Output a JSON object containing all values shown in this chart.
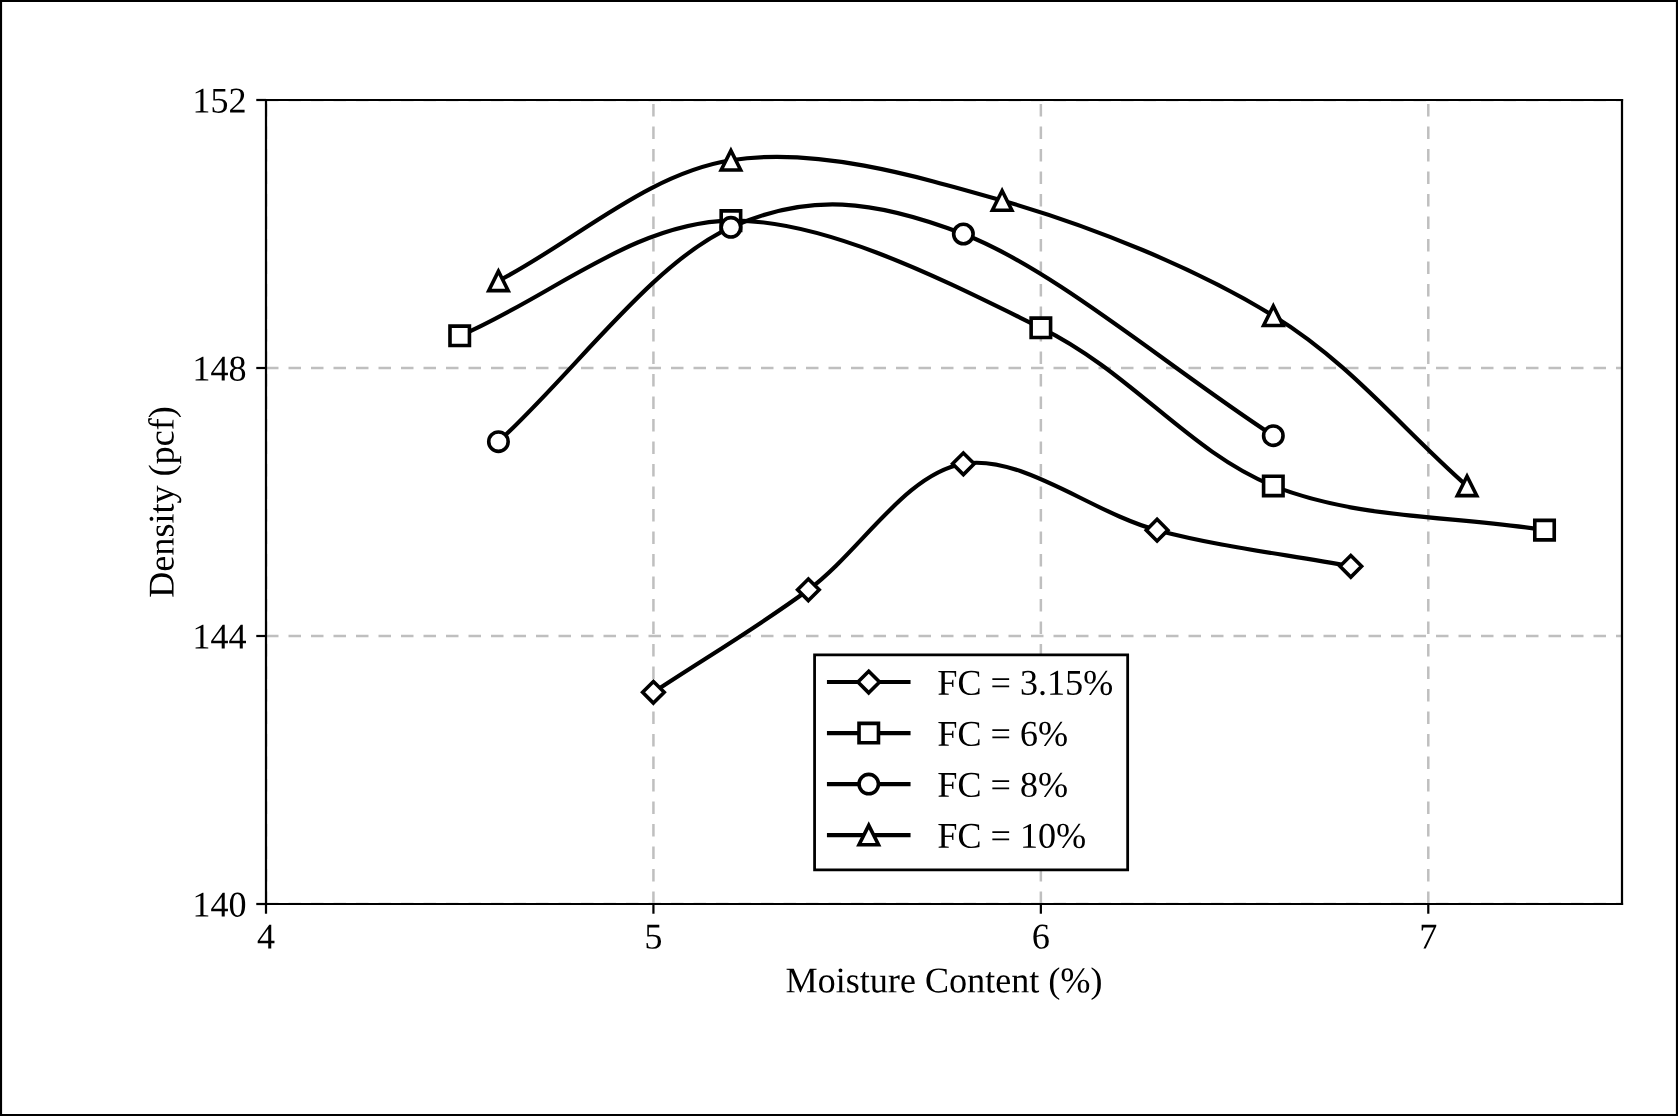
{
  "chart_data": {
    "type": "line",
    "xlabel": "Moisture Content (%)",
    "ylabel": "Density (pcf)",
    "xlim": [
      4,
      7.5
    ],
    "xticks": [
      4,
      5,
      6,
      7
    ],
    "ylim": [
      140,
      152
    ],
    "yticks": [
      140,
      144,
      148,
      152
    ],
    "grid": true,
    "legend": "bottom",
    "line_style": "solid",
    "series": [
      {
        "name": "FC = 3.15%",
        "color": "#000000",
        "marker": "diamond",
        "x": [
          5,
          5.4,
          5.8,
          6.3,
          6.8
        ],
        "values": [
          143.16,
          144.69,
          146.57,
          145.58,
          145.04
        ]
      },
      {
        "name": "FC = 6%",
        "color": "#000000",
        "marker": "square",
        "x": [
          4.5,
          5.2,
          6.0,
          6.6,
          7.3
        ],
        "values": [
          148.48,
          150.2,
          148.6,
          146.24,
          145.58
        ]
      },
      {
        "name": "FC = 8%",
        "color": "#000000",
        "marker": "circle",
        "x": [
          4.6,
          5.2,
          5.8,
          6.6
        ],
        "values": [
          146.9,
          150.1,
          150.0,
          146.99
        ]
      },
      {
        "name": "FC = 10%",
        "color": "#000000",
        "marker": "triangle",
        "x": [
          4.6,
          5.2,
          5.9,
          6.6,
          7.1
        ],
        "values": [
          149.3,
          151.1,
          150.5,
          148.78,
          146.24
        ]
      }
    ]
  }
}
